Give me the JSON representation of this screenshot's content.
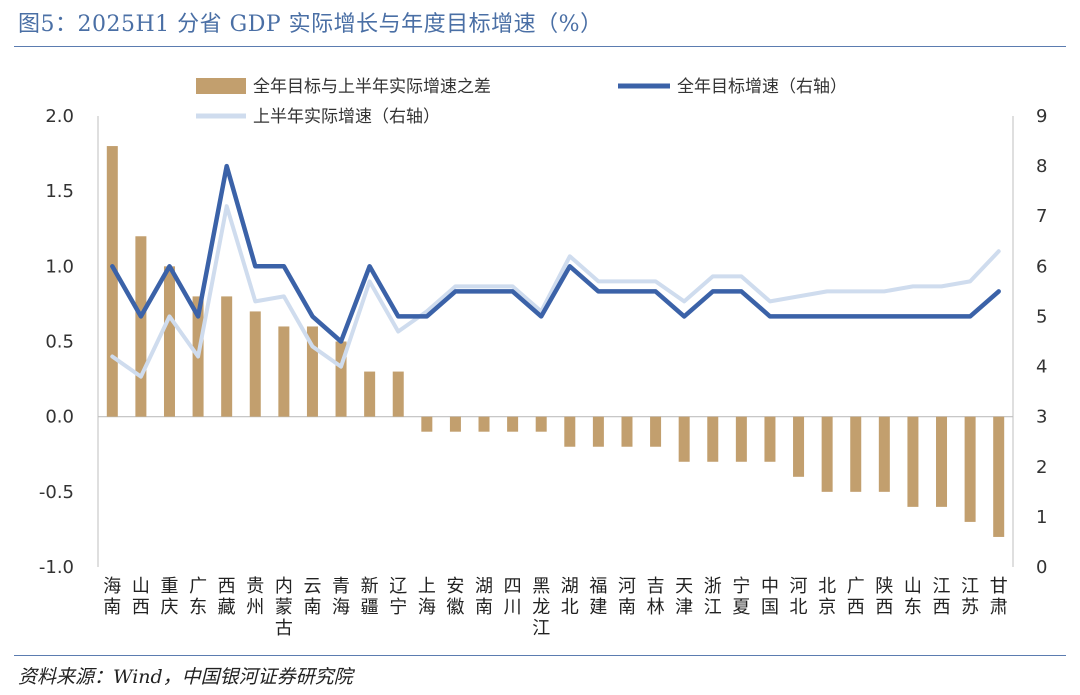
{
  "title": "图5：2025H1 分省 GDP 实际增长与年度目标增速（%）",
  "source": "资料来源：Wind，中国银河证券研究院",
  "colors": {
    "bar": "#c29f6e",
    "target_line": "#3b62a8",
    "h1_line": "#cfdcee",
    "axis": "#bfbfbf",
    "title": "#4a6fa5"
  },
  "chart_data": {
    "type": "bar",
    "categories": [
      "海南",
      "山西",
      "重庆",
      "广东",
      "西藏",
      "贵州",
      "内蒙古",
      "云南",
      "青海",
      "新疆",
      "辽宁",
      "上海",
      "安徽",
      "湖南",
      "四川",
      "黑龙江",
      "湖北",
      "福建",
      "河南",
      "吉林",
      "天津",
      "浙江",
      "宁夏",
      "中国",
      "河北",
      "北京",
      "广西",
      "陕西",
      "山东",
      "江西",
      "江苏",
      "甘肃"
    ],
    "series": [
      {
        "name": "全年目标与上半年实际增速之差",
        "type": "bar",
        "axis": "left",
        "values": [
          1.8,
          1.2,
          1.0,
          0.8,
          0.8,
          0.7,
          0.6,
          0.6,
          0.5,
          0.3,
          0.3,
          -0.1,
          -0.1,
          -0.1,
          -0.1,
          -0.1,
          -0.2,
          -0.2,
          -0.2,
          -0.2,
          -0.3,
          -0.3,
          -0.3,
          -0.3,
          -0.4,
          -0.5,
          -0.5,
          -0.5,
          -0.6,
          -0.6,
          -0.7,
          -0.8
        ]
      },
      {
        "name": "全年目标增速（右轴）",
        "type": "line",
        "axis": "right",
        "values": [
          6.0,
          5.0,
          6.0,
          5.0,
          8.0,
          6.0,
          6.0,
          5.0,
          4.5,
          6.0,
          5.0,
          5.0,
          5.5,
          5.5,
          5.5,
          5.0,
          6.0,
          5.5,
          5.5,
          5.5,
          5.0,
          5.5,
          5.5,
          5.0,
          5.0,
          5.0,
          5.0,
          5.0,
          5.0,
          5.0,
          5.0,
          5.5
        ]
      },
      {
        "name": "上半年实际增速（右轴）",
        "type": "line",
        "axis": "right",
        "values": [
          4.2,
          3.8,
          5.0,
          4.2,
          7.2,
          5.3,
          5.4,
          4.4,
          4.0,
          5.7,
          4.7,
          5.1,
          5.6,
          5.6,
          5.6,
          5.1,
          6.2,
          5.7,
          5.7,
          5.7,
          5.3,
          5.8,
          5.8,
          5.3,
          5.4,
          5.5,
          5.5,
          5.5,
          5.6,
          5.6,
          5.7,
          6.3
        ]
      }
    ],
    "y_left": {
      "ylim": [
        -1.0,
        2.0
      ],
      "ticks": [
        "2.0",
        "1.5",
        "1.0",
        "0.5",
        "0.0",
        "-0.5",
        "-1.0"
      ]
    },
    "y_right": {
      "ylim": [
        0,
        9
      ],
      "ticks": [
        "9",
        "8",
        "7",
        "6",
        "5",
        "4",
        "3",
        "2",
        "1",
        "0"
      ]
    },
    "legend": {
      "placement": "top"
    },
    "grid": false
  }
}
